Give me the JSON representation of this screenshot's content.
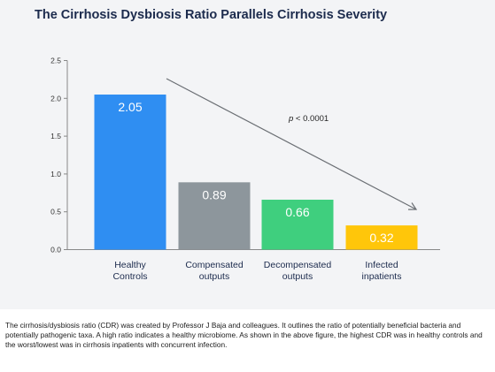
{
  "chart_data": {
    "type": "bar",
    "title": "The Cirrhosis Dysbiosis Ratio Parallels Cirrhosis Severity",
    "categories": [
      [
        "Healthy",
        "Controls"
      ],
      [
        "Compensated",
        "outputs"
      ],
      [
        "Decompensated",
        "outputs"
      ],
      [
        "Infected",
        "inpatients"
      ]
    ],
    "values": [
      2.05,
      0.89,
      0.66,
      0.32
    ],
    "data_labels": [
      "2.05",
      "0.89",
      "0.66",
      "0.32"
    ],
    "colors": [
      "#2f8ef2",
      "#8d969c",
      "#3fcf7e",
      "#ffc60a"
    ],
    "yticks": [
      "0.0",
      "0.5",
      "1.0",
      "1.5",
      "2.0",
      "2.5"
    ],
    "ylim": [
      0,
      2.5
    ],
    "xlabel": "",
    "ylabel": "",
    "grid": false,
    "annotation": {
      "prefix": "p",
      "text": " < 0.0001",
      "trend": "decreasing arrow from first bar to last bar"
    }
  },
  "caption": "The cirrhosis/dysbiosis ratio (CDR) was created by Professor J Baja and colleagues. It outlines the ratio of potentially beneficial bacteria and potentially pathogenic taxa. A high ratio indicates a healthy microbiome. As shown in the above figure, the highest CDR was in healthy controls and the worst/lowest was in cirrhosis inpatients with concurrent infection."
}
